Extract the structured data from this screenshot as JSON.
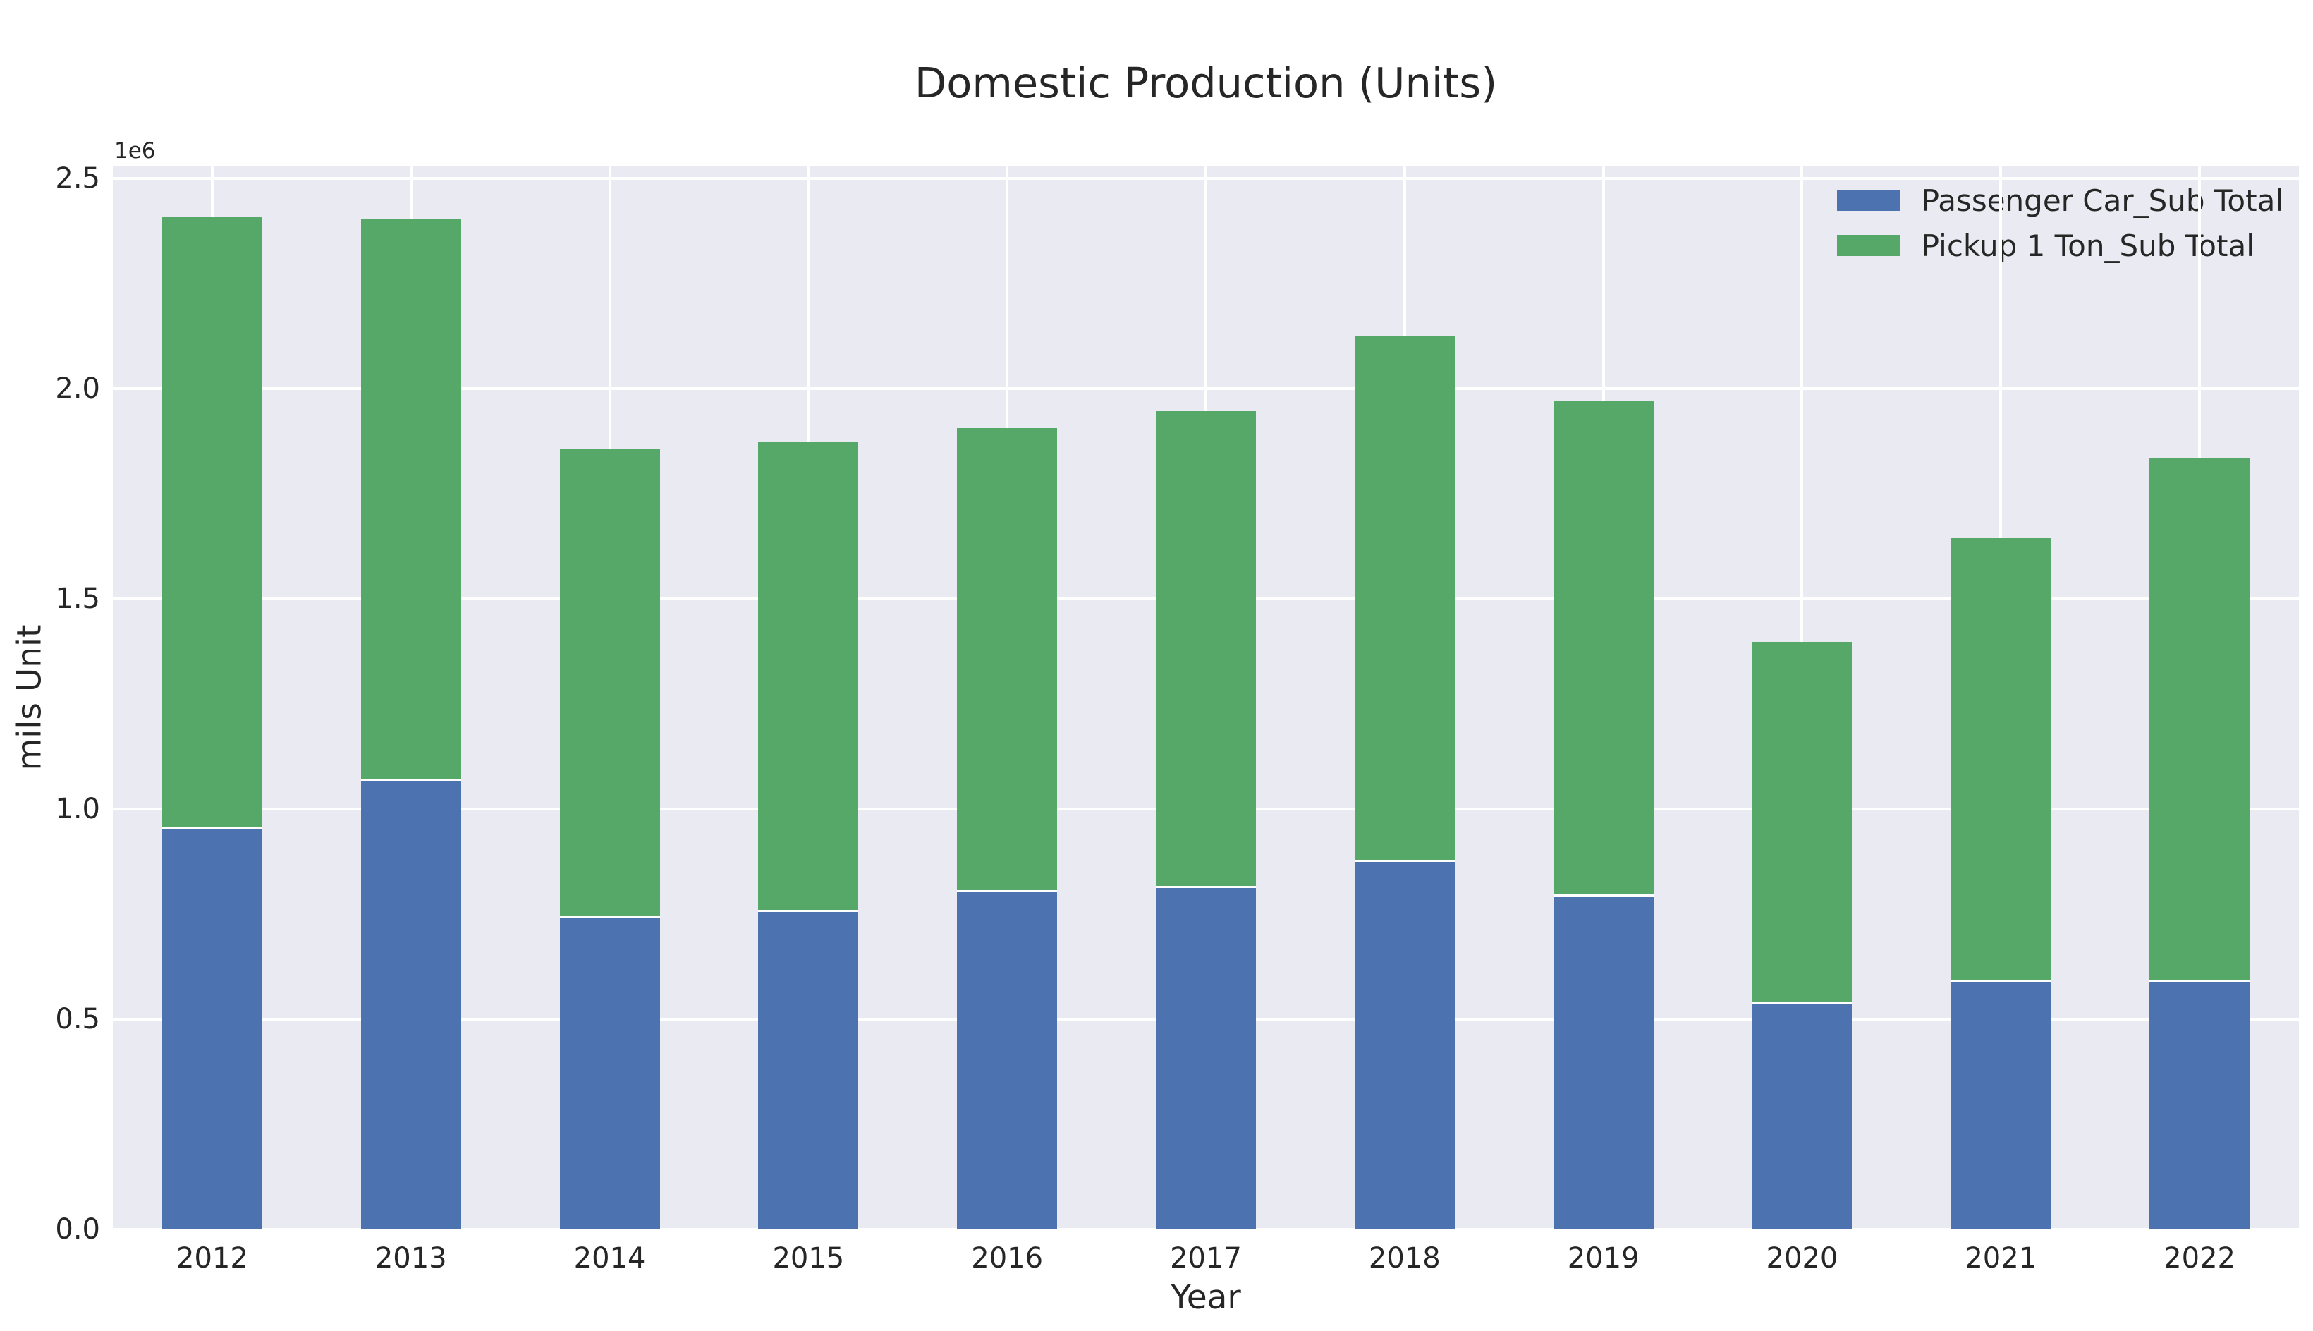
{
  "chart_data": {
    "type": "bar",
    "stacked": true,
    "title": "Domestic Production (Units)",
    "xlabel": "Year",
    "ylabel": "mils Unit",
    "y_offset_label": "1e6",
    "categories": [
      "2012",
      "2013",
      "2014",
      "2015",
      "2016",
      "2017",
      "2018",
      "2019",
      "2020",
      "2021",
      "2022"
    ],
    "series": [
      {
        "name": "Passenger Car_Sub Total",
        "color": "#4C72B0",
        "values": [
          956000,
          1070000,
          742000,
          758000,
          805000,
          815000,
          876000,
          795000,
          537000,
          592000,
          592000
        ]
      },
      {
        "name": "Pickup 1 Ton_Sub Total",
        "color": "#55A868",
        "values": [
          1453000,
          1333000,
          1114000,
          1116000,
          1101000,
          1131000,
          1250000,
          1177000,
          861000,
          1052000,
          1244000
        ]
      }
    ],
    "totals": [
      2409000,
      2403000,
      1856000,
      1874000,
      1906000,
      1946000,
      2126000,
      1972000,
      1398000,
      1644000,
      1836000
    ],
    "ylim": [
      0,
      2530000
    ],
    "yticks": {
      "labels": [
        "0.0",
        "0.5",
        "1.0",
        "1.5",
        "2.0",
        "2.5"
      ],
      "values": [
        0,
        500000,
        1000000,
        1500000,
        2000000,
        2500000
      ]
    },
    "grid": true,
    "legend_position": "upper right",
    "colors": {
      "axes_background": "#EAEAF2",
      "gridline": "#FFFFFF",
      "text": "#262626",
      "figure_background": "#FFFFFF"
    }
  }
}
